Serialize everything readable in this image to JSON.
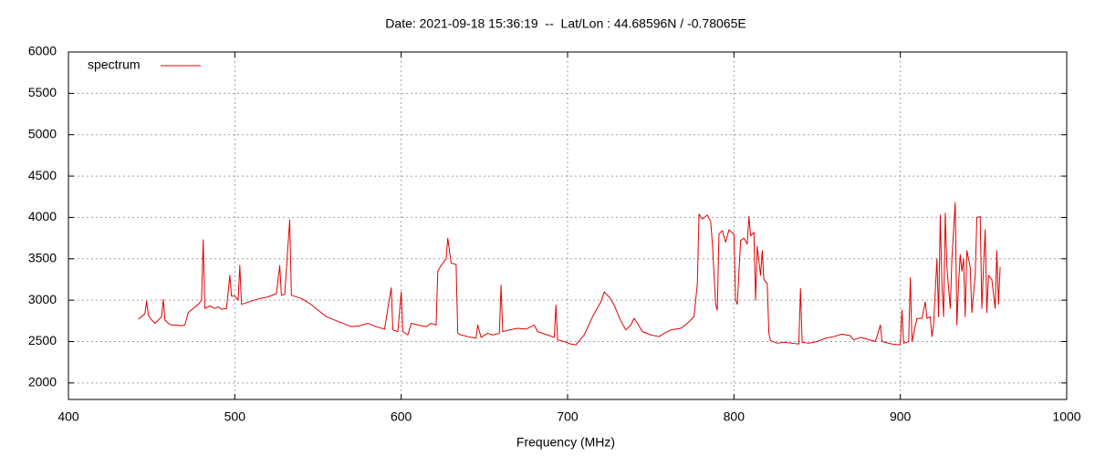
{
  "chart_data": {
    "type": "line",
    "title": "Date: 2021-09-18 15:36:19  --  Lat/Lon : 44.68596N / -0.78065E",
    "x_label": "Frequency (MHz)",
    "x": [
      442,
      444,
      446,
      447,
      448,
      450,
      452,
      454,
      456,
      457,
      458,
      460,
      462,
      465,
      468,
      470,
      472,
      475,
      478,
      480,
      481,
      482,
      485,
      488,
      490,
      492,
      495,
      497,
      498,
      500,
      502,
      503,
      504,
      510,
      515,
      520,
      525,
      527,
      528,
      530,
      533,
      534,
      540,
      545,
      550,
      555,
      560,
      565,
      570,
      575,
      580,
      585,
      590,
      594,
      595,
      598,
      600,
      601,
      604,
      606,
      610,
      615,
      618,
      621,
      622,
      624,
      627,
      628,
      630,
      633,
      634,
      636,
      640,
      645,
      646,
      648,
      652,
      655,
      659,
      660,
      661,
      665,
      670,
      675,
      680,
      682,
      688,
      692,
      693,
      694,
      698,
      702,
      705,
      710,
      715,
      720,
      722,
      725,
      728,
      732,
      735,
      738,
      740,
      742,
      745,
      750,
      755,
      758,
      762,
      768,
      772,
      776,
      778,
      779,
      781,
      784,
      786,
      787,
      789,
      790,
      791,
      793,
      795,
      797,
      800,
      801,
      802,
      804,
      806,
      808,
      809,
      810,
      812,
      813,
      814,
      816,
      817,
      818,
      820,
      821,
      822,
      826,
      830,
      835,
      839,
      840,
      841,
      845,
      850,
      855,
      860,
      865,
      870,
      872,
      876,
      880,
      885,
      888,
      889,
      895,
      900,
      901,
      902,
      905,
      906,
      907,
      910,
      913,
      915,
      916,
      918,
      919,
      920,
      922,
      923,
      924,
      925,
      926,
      927,
      928,
      930,
      931,
      933,
      934,
      935,
      936,
      937,
      938,
      939,
      940,
      942,
      943,
      945,
      946,
      948,
      949,
      950,
      951,
      952,
      953,
      955,
      957,
      958,
      959,
      960
    ],
    "series": [
      {
        "name": "spectrum",
        "color": "#e00000",
        "values": [
          2770,
          2800,
          2840,
          2990,
          2820,
          2760,
          2720,
          2760,
          2800,
          3010,
          2760,
          2720,
          2700,
          2700,
          2690,
          2700,
          2850,
          2900,
          2950,
          3000,
          3730,
          2900,
          2930,
          2900,
          2920,
          2890,
          2900,
          3300,
          3050,
          3050,
          3000,
          3420,
          2950,
          2990,
          3020,
          3040,
          3080,
          3420,
          3060,
          3070,
          3970,
          3060,
          3020,
          2960,
          2880,
          2800,
          2760,
          2720,
          2680,
          2690,
          2720,
          2680,
          2650,
          3150,
          2640,
          2620,
          3100,
          2620,
          2580,
          2720,
          2700,
          2680,
          2720,
          2700,
          3350,
          3420,
          3500,
          3750,
          3450,
          3430,
          2600,
          2580,
          2560,
          2540,
          2700,
          2550,
          2600,
          2580,
          2600,
          3180,
          2620,
          2640,
          2660,
          2650,
          2700,
          2620,
          2580,
          2550,
          2940,
          2520,
          2500,
          2470,
          2460,
          2580,
          2800,
          2980,
          3100,
          3040,
          2940,
          2750,
          2640,
          2700,
          2780,
          2720,
          2620,
          2580,
          2560,
          2600,
          2640,
          2660,
          2720,
          2800,
          3200,
          4040,
          3980,
          4030,
          3950,
          3700,
          2950,
          2880,
          3800,
          3840,
          3700,
          3850,
          3800,
          3000,
          2950,
          3720,
          3750,
          3680,
          4010,
          3780,
          3820,
          3000,
          3650,
          3300,
          3600,
          3250,
          3200,
          2600,
          2510,
          2480,
          2490,
          2480,
          2470,
          3140,
          2490,
          2480,
          2500,
          2540,
          2560,
          2590,
          2570,
          2520,
          2550,
          2530,
          2500,
          2700,
          2500,
          2470,
          2460,
          2880,
          2480,
          2500,
          3270,
          2500,
          2780,
          2780,
          2980,
          2780,
          2800,
          2560,
          2700,
          3500,
          2800,
          4030,
          3200,
          2800,
          4050,
          3400,
          2900,
          3500,
          4180,
          2700,
          3200,
          3550,
          3350,
          3500,
          2800,
          3600,
          3400,
          2850,
          3300,
          4000,
          4010,
          2900,
          3400,
          3850,
          2850,
          3300,
          3250,
          2900,
          3600,
          2950,
          3400
        ]
      }
    ],
    "xlim": [
      400,
      1000
    ],
    "xticks": [
      400,
      500,
      600,
      700,
      800,
      900,
      1000
    ],
    "ylim": [
      1800,
      6000
    ],
    "yticks": [
      2000,
      2500,
      3000,
      3500,
      4000,
      4500,
      5000,
      5500,
      6000
    ],
    "grid": true,
    "legend": "top-left"
  }
}
